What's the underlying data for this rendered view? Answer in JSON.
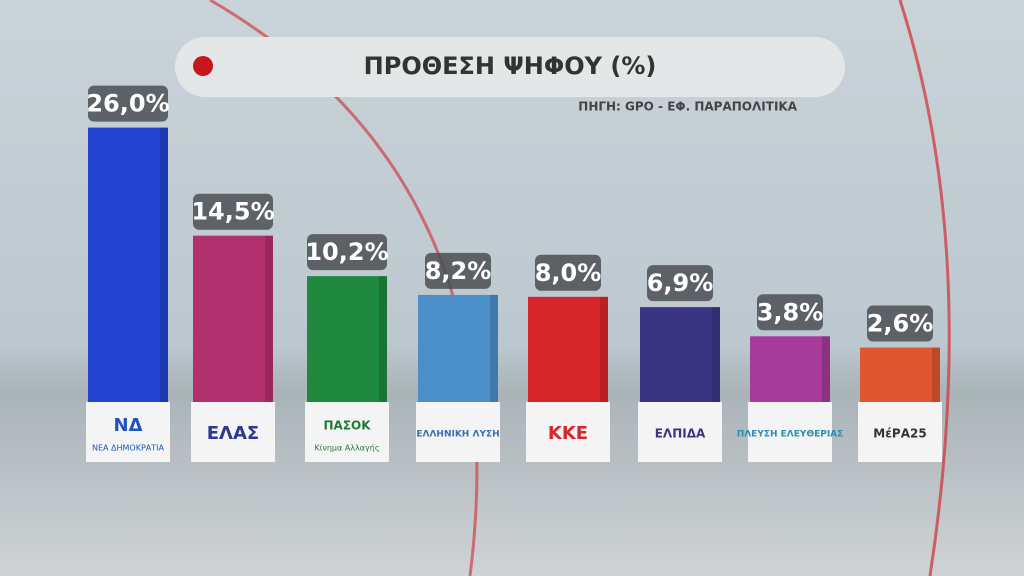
{
  "chart_data": {
    "type": "bar",
    "title": "ΠΡΟΘΕΣΗ ΨΗΦΟΥ (%)",
    "source": "ΠΗΓΗ: GPO - ΕΦ. ΠΑΡΑΠΟΛΙΤΙΚΑ",
    "categories": [
      "ΝΔ",
      "ΕΛΑΣ",
      "ΠΑΣΟΚ",
      "ΕΛΛΗΝΙΚΗ ΛΥΣΗ",
      "ΚΚΕ",
      "ΕΛΠΙΔΑ",
      "ΠΛΕΥΣΗ ΕΛΕΥΘΕΡΙΑΣ",
      "ΜέΡΑ25"
    ],
    "category_sublabels": [
      "ΝΕΑ ΔΗΜΟΚΡΑΤΙΑ",
      null,
      "Κίνημα Αλλαγής",
      null,
      null,
      null,
      null,
      null
    ],
    "values": [
      26.0,
      14.5,
      10.2,
      8.2,
      8.0,
      6.9,
      3.8,
      2.6
    ],
    "value_labels": [
      "26,0%",
      "14,5%",
      "10,2%",
      "8,2%",
      "8,0%",
      "6,9%",
      "3,8%",
      "2,6%"
    ],
    "colors": [
      "#2243d0",
      "#b3306f",
      "#1f8a3f",
      "#4b8fc9",
      "#d7262b",
      "#3a3582",
      "#a63b9b",
      "#e05631"
    ],
    "logo_colors": [
      "#1d55b8",
      "#2b3990",
      "#1f7a35",
      "#3a6fb0",
      "#d7262b",
      "#3a3582",
      "#2a8fb0",
      "#333333"
    ]
  }
}
